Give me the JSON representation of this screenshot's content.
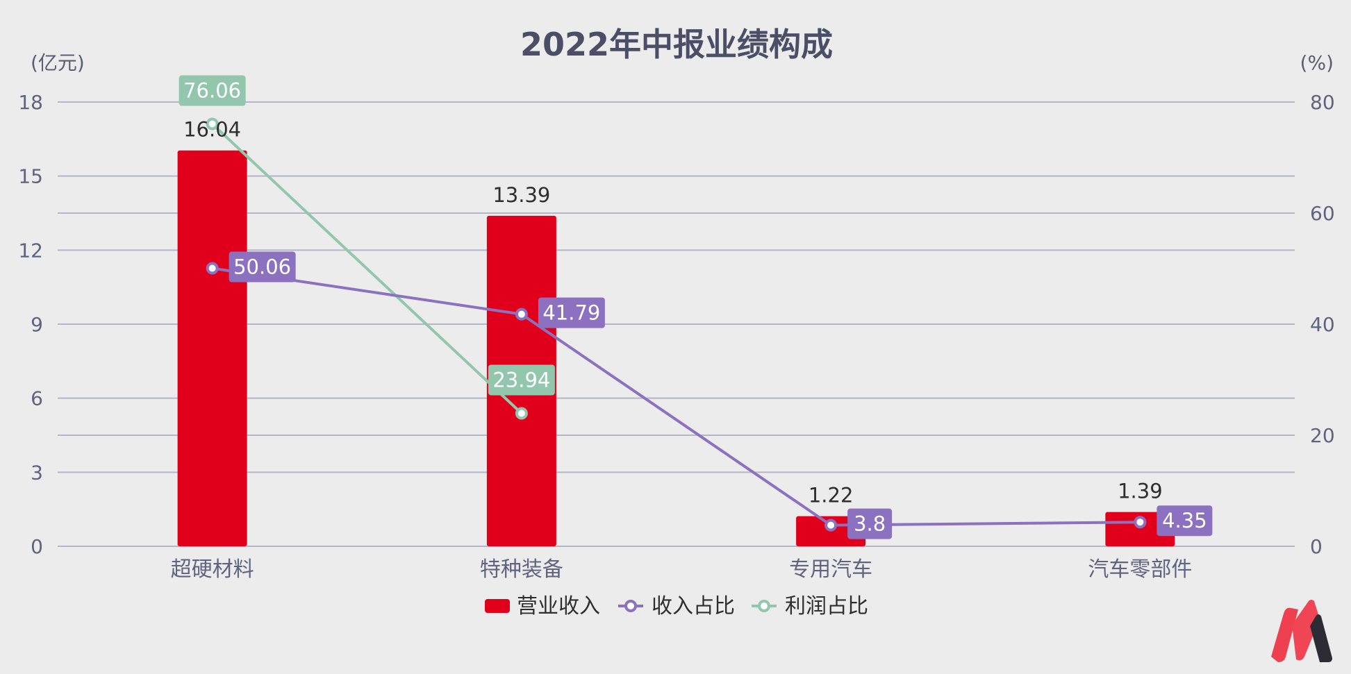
{
  "chart_data": {
    "type": "bar",
    "title": "2022年中报业绩构成",
    "left_unit": "(亿元)",
    "right_unit": "(%)",
    "categories": [
      "超硬材料",
      "特种装备",
      "专用汽车",
      "汽车零部件"
    ],
    "left_ylim": [
      0,
      18
    ],
    "left_ticks": [
      0,
      3,
      6,
      9,
      12,
      15,
      18
    ],
    "right_ylim": [
      0,
      80
    ],
    "right_ticks": [
      0,
      20,
      40,
      60,
      80
    ],
    "grid": true,
    "legend_position": "bottom",
    "series": [
      {
        "name": "营业收入",
        "type": "bar",
        "axis": "left",
        "color": "#e0001b",
        "values": [
          16.04,
          13.39,
          1.22,
          1.39
        ],
        "labels": [
          "16.04",
          "13.39",
          "1.22",
          "1.39"
        ]
      },
      {
        "name": "收入占比",
        "type": "line",
        "axis": "right",
        "color": "#8b71c0",
        "values": [
          50.06,
          41.79,
          3.8,
          4.35
        ],
        "labels": [
          "50.06",
          "41.79",
          "3.8",
          "4.35"
        ]
      },
      {
        "name": "利润占比",
        "type": "line",
        "axis": "right",
        "color": "#93c7ad",
        "values": [
          76.06,
          23.94,
          null,
          null
        ],
        "labels": [
          "76.06",
          "23.94",
          null,
          null
        ]
      }
    ]
  },
  "logo": {
    "name": "brand-logo"
  }
}
